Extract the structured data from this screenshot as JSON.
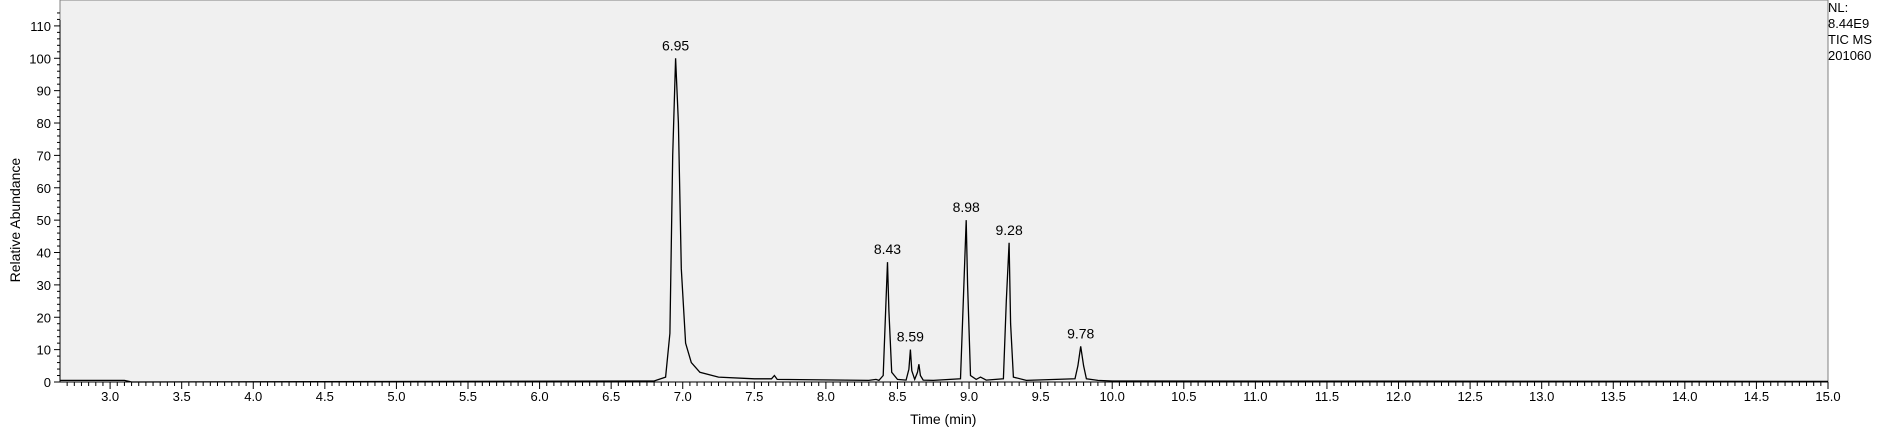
{
  "chart_data": {
    "type": "line",
    "title": "",
    "xlabel": "Time (min)",
    "ylabel": "Relative Abundance",
    "xlim": [
      2.65,
      15.0
    ],
    "ylim": [
      0,
      118
    ],
    "grid": false,
    "plot_background": "#f0f0f0",
    "line_color": "#000000",
    "x_ticks": [
      "3.0",
      "3.5",
      "4.0",
      "4.5",
      "5.0",
      "5.5",
      "6.0",
      "6.5",
      "7.0",
      "7.5",
      "8.0",
      "8.5",
      "9.0",
      "9.5",
      "10.0",
      "10.5",
      "11.0",
      "11.5",
      "12.0",
      "12.5",
      "13.0",
      "13.5",
      "14.0",
      "14.5",
      "15.0"
    ],
    "y_ticks": [
      "0",
      "10",
      "20",
      "30",
      "40",
      "50",
      "60",
      "70",
      "80",
      "90",
      "100",
      "110"
    ],
    "series": [
      {
        "x": [
          2.65,
          3.1,
          3.15,
          6.8,
          6.88,
          6.91,
          6.93,
          6.95,
          6.97,
          6.99,
          7.02,
          7.06,
          7.12,
          7.25,
          7.5,
          7.62,
          7.64,
          7.66,
          8.3,
          8.35,
          8.37,
          8.4,
          8.42,
          8.43,
          8.44,
          8.46,
          8.5,
          8.56,
          8.58,
          8.59,
          8.6,
          8.62,
          8.64,
          8.65,
          8.66,
          8.68,
          8.75,
          8.94,
          8.96,
          8.98,
          8.99,
          9.01,
          9.05,
          9.08,
          9.12,
          9.24,
          9.26,
          9.28,
          9.29,
          9.31,
          9.4,
          9.74,
          9.76,
          9.78,
          9.8,
          9.82,
          9.9,
          10.0,
          15.0
        ],
        "y": [
          0.5,
          0.5,
          0,
          0.3,
          1.5,
          15,
          70,
          100,
          80,
          35,
          12,
          6,
          3,
          1.5,
          1,
          1,
          2,
          0.8,
          0.5,
          0.8,
          0.5,
          2,
          25,
          37,
          22,
          3,
          0.8,
          0.6,
          4,
          10,
          3.5,
          0.8,
          3,
          5.5,
          2,
          0.6,
          0.5,
          1,
          25,
          50,
          30,
          2,
          0.8,
          1.5,
          0.6,
          1,
          25,
          43,
          18,
          1.5,
          0.5,
          1,
          5,
          11,
          5,
          1,
          0.5,
          0.3,
          0.2
        ]
      }
    ],
    "annotations": [
      {
        "label": "6.95",
        "x": 6.95,
        "y": 100
      },
      {
        "label": "8.43",
        "x": 8.43,
        "y": 37
      },
      {
        "label": "8.59",
        "x": 8.59,
        "y": 10
      },
      {
        "label": "8.98",
        "x": 8.98,
        "y": 50
      },
      {
        "label": "9.28",
        "x": 9.28,
        "y": 43
      },
      {
        "label": "9.78",
        "x": 9.78,
        "y": 11
      }
    ]
  },
  "side_info": {
    "line1": "NL:",
    "line2": "8.44E9",
    "line3": "TIC  MS",
    "line4": "201060"
  }
}
